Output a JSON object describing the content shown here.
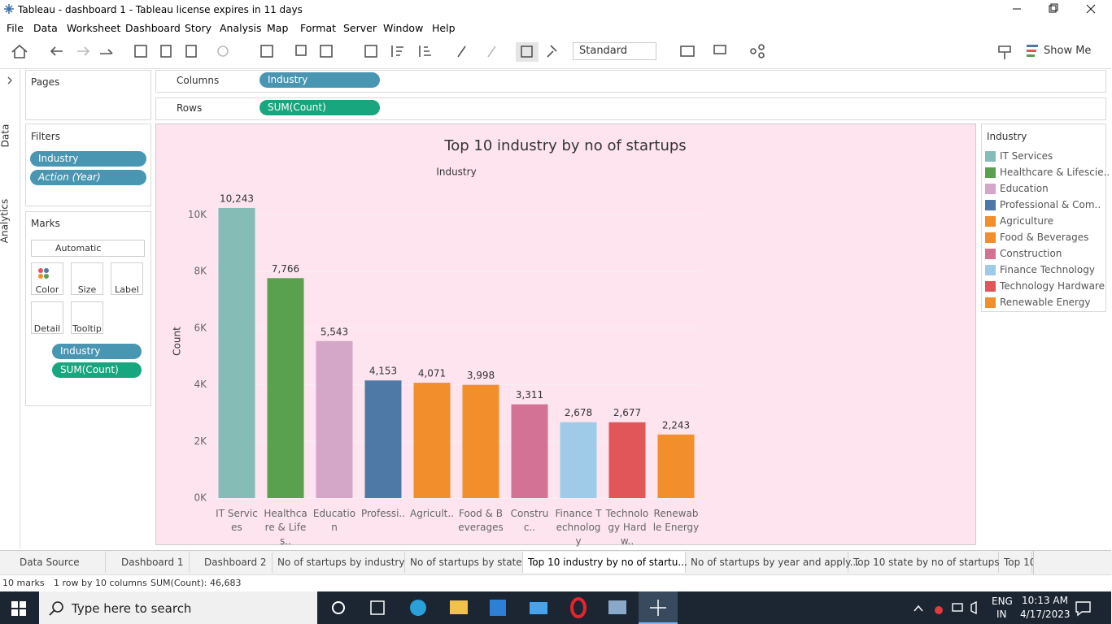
{
  "window": {
    "title": "Tableau - dashboard 1 - Tableau license expires in 11 days"
  },
  "menu": [
    "File",
    "Data",
    "Worksheet",
    "Dashboard",
    "Story",
    "Analysis",
    "Map",
    "Format",
    "Server",
    "Window",
    "Help"
  ],
  "toolbar": {
    "mark_type": "Standard",
    "show_me": "Show Me"
  },
  "side_tabs": [
    "Data",
    "Analytics"
  ],
  "pages": {
    "title": "Pages"
  },
  "filters": {
    "title": "Filters",
    "pills": [
      "Industry",
      "Action (Year)"
    ]
  },
  "marks": {
    "title": "Marks",
    "type": "Automatic",
    "buttons": [
      "Color",
      "Size",
      "Label",
      "Detail",
      "Tooltip"
    ],
    "pills": [
      "Industry",
      "SUM(Count)"
    ]
  },
  "shelves": {
    "columns_label": "Columns",
    "columns_pill": "Industry",
    "rows_label": "Rows",
    "rows_pill": "SUM(Count)"
  },
  "chart_data": {
    "type": "bar",
    "title": "Top 10 industry by no of startups",
    "x_header": "Industry",
    "ylabel": "Count",
    "categories": [
      "IT Services",
      "Healthcare & Lifes..",
      "Education",
      "Professi..",
      "Agricult..",
      "Food & Beverages",
      "Construc..",
      "Finance Technology",
      "Technology Hardw..",
      "Renewable Energy"
    ],
    "values": [
      10243,
      7766,
      5543,
      4153,
      4071,
      3998,
      3311,
      2678,
      2677,
      2243
    ],
    "value_labels": [
      "10,243",
      "7,766",
      "5,543",
      "4,153",
      "4,071",
      "3,998",
      "3,311",
      "2,678",
      "2,677",
      "2,243"
    ],
    "colors": [
      "#86bcb6",
      "#59a14f",
      "#d4a6c8",
      "#4e79a7",
      "#f28e2b",
      "#f28e2b",
      "#d37295",
      "#a0cbe8",
      "#e15759",
      "#f28e2b"
    ],
    "ylim": [
      0,
      10500
    ],
    "yticks": [
      {
        "value": 0,
        "label": "0K"
      },
      {
        "value": 2000,
        "label": "2K"
      },
      {
        "value": 4000,
        "label": "4K"
      },
      {
        "value": 6000,
        "label": "6K"
      },
      {
        "value": 8000,
        "label": "8K"
      },
      {
        "value": 10000,
        "label": "10K"
      }
    ],
    "grid": true,
    "legend_title": "Industry",
    "legend_labels": [
      "IT Services",
      "Healthcare & Lifescie..",
      "Education",
      "Professional & Com..",
      "Agriculture",
      "Food & Beverages",
      "Construction",
      "Finance Technology",
      "Technology Hardware",
      "Renewable Energy"
    ]
  },
  "sheet_tabs": [
    "Data Source",
    "Dashboard 1",
    "Dashboard 2",
    "No of startups by industry",
    "No of startups by state",
    "Top 10 industry by no of startu...",
    "No of startups by year and apply...",
    "Top 10 state by no of startups",
    "Top 10"
  ],
  "status": [
    "10 marks",
    "1 row by 10 columns",
    "SUM(Count): 46,683"
  ],
  "taskbar": {
    "search": "Type here to search",
    "lang": "ENG",
    "region": "IN",
    "time": "10:13 AM",
    "date": "4/17/2023"
  }
}
